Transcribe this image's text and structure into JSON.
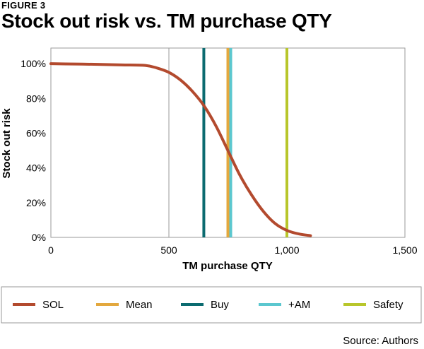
{
  "figure_label": "FIGURE 3",
  "source": "Source: Authors",
  "chart_data": {
    "type": "line",
    "title": "Stock out risk vs. TM purchase QTY",
    "xlabel": "TM purchase QTY",
    "ylabel": "Stock out risk",
    "xlim": [
      0,
      1500
    ],
    "ylim": [
      0,
      1.09
    ],
    "x_ticks": [
      0,
      500,
      1000,
      1500
    ],
    "x_tick_labels": [
      "0",
      "500",
      "1,000",
      "1,500"
    ],
    "y_ticks": [
      0,
      0.2,
      0.4,
      0.6,
      0.8,
      1.0
    ],
    "y_tick_labels": [
      "0%",
      "20%",
      "40%",
      "60%",
      "80%",
      "100%"
    ],
    "grid": "vertical",
    "legend_position": "bottom",
    "series": [
      {
        "name": "SOL",
        "color": "#b34a2e",
        "x": [
          0,
          100,
          200,
          300,
          400,
          450,
          500,
          550,
          600,
          650,
          700,
          750,
          800,
          850,
          900,
          950,
          1000,
          1050,
          1100
        ],
        "y": [
          1.0,
          0.998,
          0.996,
          0.993,
          0.99,
          0.975,
          0.95,
          0.905,
          0.84,
          0.755,
          0.64,
          0.5,
          0.36,
          0.245,
          0.15,
          0.08,
          0.04,
          0.02,
          0.01
        ]
      }
    ],
    "reference_lines": [
      {
        "name": "Mean",
        "x": 750,
        "color": "#e3a83e"
      },
      {
        "name": "Buy",
        "x": 648,
        "color": "#0b6b70"
      },
      {
        "name": "+AM",
        "x": 762,
        "color": "#5bc7cf"
      },
      {
        "name": "Safety",
        "x": 1000,
        "color": "#b8c62b"
      }
    ]
  }
}
